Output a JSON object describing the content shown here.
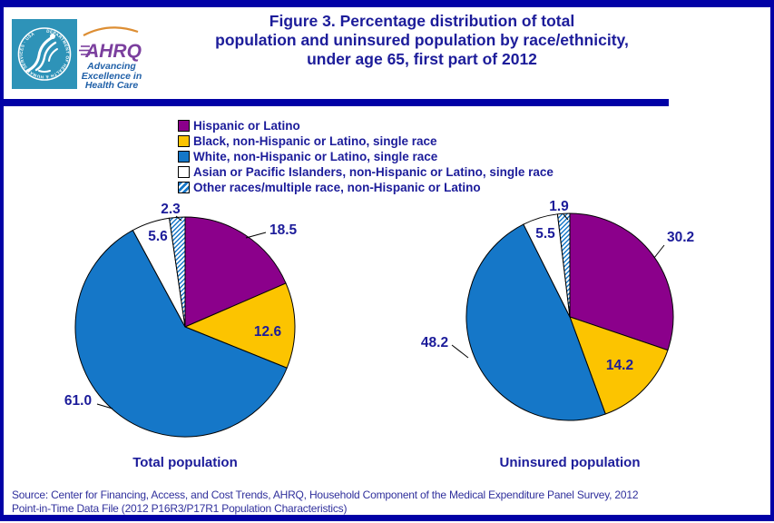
{
  "header": {
    "logo": {
      "seal_text": "DEPARTMENT OF HEALTH & HUMAN SERVICES · USA",
      "acronym": "AHRQ",
      "tagline_lines": [
        "Advancing",
        "Excellence in",
        "Health Care"
      ]
    },
    "title_lines": [
      "Figure 3. Percentage distribution of total",
      "population and uninsured population by race/ethnicity,",
      "under age 65, first part of 2012"
    ]
  },
  "colors": {
    "navy_text": "#1C1C9A",
    "border_navy": "#0101A6",
    "hispanic": "#8B008B",
    "black_race": "#FCC400",
    "white_race": "#1577C8",
    "asian": "#FFFFFF",
    "other_base": "#1577C8",
    "other_stripe": "#FFFFFF",
    "logo_teal": "#2E93B8",
    "ahrq_purple": "#7B3F9E",
    "arc_orange": "#DD8E33",
    "tagline_blue": "#2060A8"
  },
  "legend": {
    "items": [
      {
        "label": "Hispanic or Latino",
        "key": "hispanic",
        "swatch": "solid"
      },
      {
        "label": "Black, non-Hispanic or Latino, single race",
        "key": "black_race",
        "swatch": "solid"
      },
      {
        "label": "White, non-Hispanic or Latino, single race",
        "key": "white_race",
        "swatch": "solid"
      },
      {
        "label": "Asian or Pacific Islanders, non-Hispanic or Latino, single race",
        "key": "asian",
        "swatch": "solid"
      },
      {
        "label": "Other races/multiple race, non-Hispanic or Latino",
        "key": "other",
        "swatch": "hatch"
      }
    ]
  },
  "chart_data": [
    {
      "type": "pie",
      "title": "Total population",
      "categories": [
        "Hispanic or Latino",
        "Black, non-Hispanic or Latino, single race",
        "White, non-Hispanic or Latino, single race",
        "Asian or Pacific Islanders, non-Hispanic or Latino, single race",
        "Other races/multiple race, non-Hispanic or Latino"
      ],
      "values": [
        18.5,
        12.6,
        61.0,
        5.6,
        2.3
      ],
      "values_display": [
        "18.5",
        "12.6",
        "61.0",
        "5.6",
        "2.3"
      ],
      "start_angle_deg": 0,
      "direction": "clockwise",
      "legend_position": "top",
      "labels": "outside-and-inside"
    },
    {
      "type": "pie",
      "title": "Uninsured population",
      "categories": [
        "Hispanic or Latino",
        "Black, non-Hispanic or Latino, single race",
        "White, non-Hispanic or Latino, single race",
        "Asian or Pacific Islanders, non-Hispanic or Latino, single race",
        "Other races/multiple race, non-Hispanic or Latino"
      ],
      "values": [
        30.2,
        14.2,
        48.2,
        5.5,
        1.9
      ],
      "values_display": [
        "30.2",
        "14.2",
        "48.2",
        "5.5",
        "1.9"
      ],
      "start_angle_deg": 0,
      "direction": "clockwise",
      "legend_position": "top",
      "labels": "outside-and-inside"
    }
  ],
  "source_lines": [
    "Source: Center for Financing, Access, and Cost Trends, AHRQ, Household Component of the Medical Expenditure Panel Survey, 2012",
    "Point-in-Time Data File (2012 P16R3/P17R1 Population Characteristics)"
  ]
}
